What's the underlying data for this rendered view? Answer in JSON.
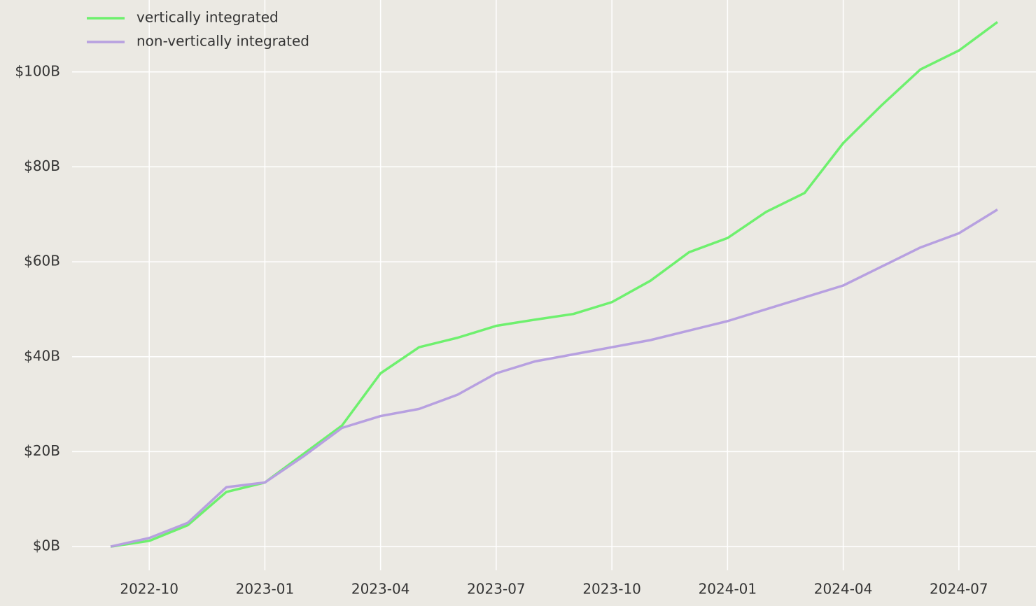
{
  "chart_data": {
    "type": "line",
    "x": [
      "2022-09",
      "2022-10",
      "2022-11",
      "2022-12",
      "2023-01",
      "2023-02",
      "2023-03",
      "2023-04",
      "2023-05",
      "2023-06",
      "2023-07",
      "2023-08",
      "2023-09",
      "2023-10",
      "2023-11",
      "2023-12",
      "2024-01",
      "2024-02",
      "2024-03",
      "2024-04",
      "2024-05",
      "2024-06",
      "2024-07",
      "2024-08"
    ],
    "series": [
      {
        "name": "vertically integrated",
        "color": "#6ef06e",
        "values": [
          0,
          1.2,
          4.5,
          11.5,
          13.5,
          19.5,
          25.5,
          36.5,
          42,
          44,
          46.5,
          47.8,
          49,
          51.5,
          56,
          62,
          65,
          70.5,
          74.5,
          85,
          93,
          100.5,
          104.5,
          110.5
        ]
      },
      {
        "name": "non-vertically integrated",
        "color": "#b7a0e0",
        "values": [
          0,
          1.8,
          5,
          12.5,
          13.5,
          19,
          25,
          27.5,
          29,
          32,
          36.5,
          39,
          40.5,
          42,
          43.5,
          45.5,
          47.5,
          50,
          52.5,
          55,
          59,
          63,
          66,
          71
        ]
      }
    ],
    "xlim": [
      "2022-08",
      "2024-09"
    ],
    "xticks": [
      "2022-10",
      "2023-01",
      "2023-04",
      "2023-07",
      "2023-10",
      "2024-01",
      "2024-04",
      "2024-07"
    ],
    "ylim": [
      -5,
      115
    ],
    "yticks": [
      {
        "value": 0,
        "label": "$0B"
      },
      {
        "value": 20,
        "label": "$20B"
      },
      {
        "value": 40,
        "label": "$40B"
      },
      {
        "value": 60,
        "label": "$60B"
      },
      {
        "value": 80,
        "label": "$80B"
      },
      {
        "value": 100,
        "label": "$100B"
      }
    ],
    "grid": true,
    "legend": "upper left"
  }
}
